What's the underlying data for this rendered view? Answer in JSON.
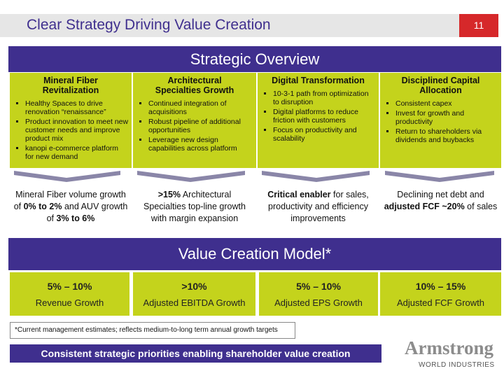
{
  "header": {
    "title": "Clear Strategy Driving Value Creation",
    "page_number": "11"
  },
  "overview": {
    "title": "Strategic Overview",
    "pillars": [
      {
        "title": "Mineral Fiber Revitalization",
        "bullets": [
          "Healthy Spaces to drive renovation “renaissance”",
          "Product innovation to meet new customer needs and improve product mix",
          "kanopi e-commerce platform for new demand"
        ],
        "outcome": [
          {
            "text": "Mineral Fiber volume growth of "
          },
          {
            "text": "0% to 2%",
            "bold": true
          },
          {
            "text": " and AUV growth of "
          },
          {
            "text": "3% to 6%",
            "bold": true
          }
        ]
      },
      {
        "title": "Architectural Specialties Growth",
        "bullets": [
          "Continued integration of acquisitions",
          "Robust pipeline of additional opportunities",
          "Leverage new design capabilities across platform"
        ],
        "outcome": [
          {
            "text": ">15%",
            "bold": true
          },
          {
            "text": " Architectural Specialties top-line growth with margin expansion"
          }
        ]
      },
      {
        "title": "Digital Transformation",
        "bullets": [
          "10-3-1 path from optimization to disruption",
          "Digital platforms to reduce friction with customers",
          "Focus on productivity and scalability"
        ],
        "outcome": [
          {
            "text": "Critical enabler",
            "bold": true
          },
          {
            "text": " for sales, productivity and efficiency improvements"
          }
        ]
      },
      {
        "title": "Disciplined Capital Allocation",
        "bullets": [
          "Consistent capex",
          "Invest for growth and productivity",
          "Return to shareholders via dividends and buybacks"
        ],
        "outcome": [
          {
            "text": "Declining net debt and "
          },
          {
            "text": "adjusted FCF ~20%",
            "bold": true
          },
          {
            "text": " of sales"
          }
        ]
      }
    ]
  },
  "value_model": {
    "title": "Value Creation Model*",
    "items": [
      {
        "range": "5% – 10%",
        "label": "Revenue Growth"
      },
      {
        "range": ">10%",
        "label": "Adjusted EBITDA Growth"
      },
      {
        "range": "5% – 10%",
        "label": "Adjusted EPS Growth"
      },
      {
        "range": "10% – 15%",
        "label": "Adjusted FCF Growth"
      }
    ]
  },
  "footnote": "*Current management estimates; reflects medium-to-long term annual growth targets",
  "banner": "Consistent strategic priorities enabling shareholder value creation",
  "logo": {
    "name": "Armstrong",
    "subtitle": "WORLD INDUSTRIES"
  }
}
